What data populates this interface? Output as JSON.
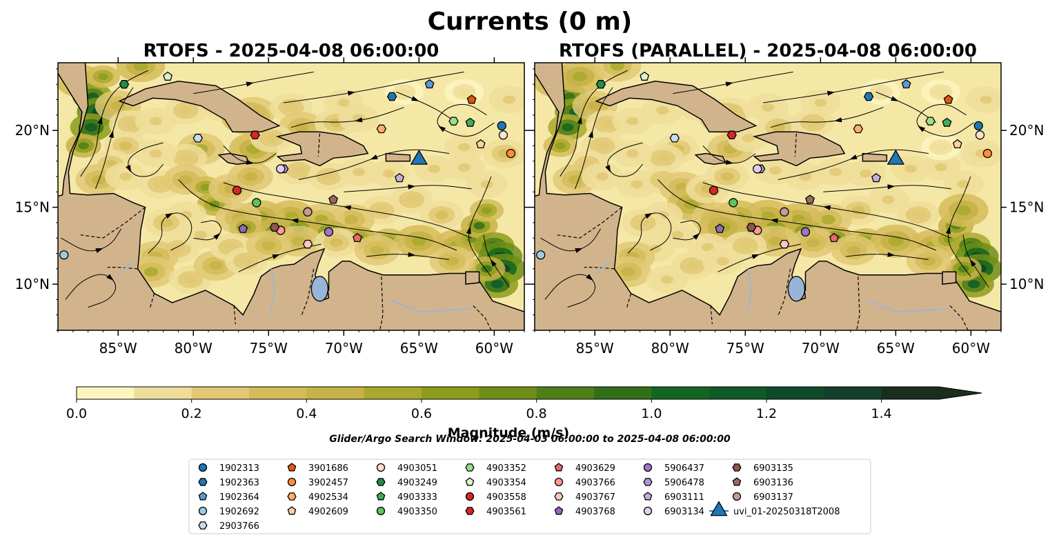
{
  "chart_data": {
    "type": "map-streamplot",
    "title": "Currents (0 m)",
    "panels": [
      {
        "title": "RTOFS - 2025-04-08 06:00:00",
        "variant": 0
      },
      {
        "title": "RTOFS (PARALLEL) - 2025-04-08 06:00:00",
        "variant": 1
      }
    ],
    "extent": {
      "lon": [
        -89,
        -58
      ],
      "lat": [
        7,
        24.4
      ]
    },
    "xticks": [
      {
        "lon": -85,
        "label": "85°W"
      },
      {
        "lon": -80,
        "label": "80°W"
      },
      {
        "lon": -75,
        "label": "75°W"
      },
      {
        "lon": -70,
        "label": "70°W"
      },
      {
        "lon": -65,
        "label": "65°W"
      },
      {
        "lon": -60,
        "label": "60°W"
      }
    ],
    "yticks": [
      {
        "lat": 10,
        "label": "10°N"
      },
      {
        "lat": 15,
        "label": "15°N"
      },
      {
        "lat": 20,
        "label": "20°N"
      }
    ],
    "colorbar": {
      "label": "Magnitude (m/s)",
      "min": 0,
      "max": 1.5,
      "step": 0.1,
      "extend": "max",
      "ticks": [
        {
          "v": 0,
          "label": "0.0"
        },
        {
          "v": 0.2,
          "label": "0.2"
        },
        {
          "v": 0.4,
          "label": "0.4"
        },
        {
          "v": 0.6,
          "label": "0.6"
        },
        {
          "v": 0.8,
          "label": "0.8"
        },
        {
          "v": 1.0,
          "label": "1.0"
        },
        {
          "v": 1.2,
          "label": "1.2"
        },
        {
          "v": 1.4,
          "label": "1.4"
        }
      ],
      "colors": [
        "#fbf5be",
        "#efde9a",
        "#e1c874",
        "#d4bc59",
        "#c6b246",
        "#a9a92e",
        "#8d9c1c",
        "#6f8e17",
        "#4f7e18",
        "#317019",
        "#12661f",
        "#0f5a28",
        "#0f4a2a",
        "#13402b",
        "#1a2e1c"
      ]
    },
    "search_window": "Glider/Argo Search Window: 2025-04-03 06:00:00 to 2025-04-08 06:00:00",
    "markers": [
      {
        "id": "1902313",
        "shape": "circle",
        "color": "#1f77b4",
        "lon": -59.5,
        "lat": 20.3
      },
      {
        "id": "1902363",
        "shape": "hexagon",
        "color": "#1f77b4",
        "lon": -66.8,
        "lat": 22.2
      },
      {
        "id": "1902364",
        "shape": "pentagon",
        "color": "#5b9bd5",
        "lon": -64.3,
        "lat": 23.0
      },
      {
        "id": "1902692",
        "shape": "circle",
        "color": "#9ecae1",
        "lon": -88.6,
        "lat": 11.9
      },
      {
        "id": "2903766",
        "shape": "hexagon",
        "color": "#c6dbef",
        "lon": -79.7,
        "lat": 19.5
      },
      {
        "id": "3901686",
        "shape": "pentagon",
        "color": "#e6550d",
        "lon": -61.5,
        "lat": 22.0
      },
      {
        "id": "3902457",
        "shape": "circle",
        "color": "#fd8d3c",
        "lon": -58.9,
        "lat": 18.5
      },
      {
        "id": "4902534",
        "shape": "hexagon",
        "color": "#fdae6b",
        "lon": -67.5,
        "lat": 20.1
      },
      {
        "id": "4902609",
        "shape": "pentagon",
        "color": "#fdd0a2",
        "lon": -60.9,
        "lat": 19.1
      },
      {
        "id": "4903051",
        "shape": "circle",
        "color": "#fde0c8",
        "lon": -59.4,
        "lat": 19.7
      },
      {
        "id": "4903249",
        "shape": "hexagon",
        "color": "#238b45",
        "lon": -84.6,
        "lat": 23.0
      },
      {
        "id": "4903333",
        "shape": "pentagon",
        "color": "#41ab5d",
        "lon": -61.6,
        "lat": 20.5
      },
      {
        "id": "4903350",
        "shape": "circle",
        "color": "#5ec25e",
        "lon": -75.8,
        "lat": 15.3
      },
      {
        "id": "4903352",
        "shape": "hexagon",
        "color": "#98df8a",
        "lon": -62.7,
        "lat": 20.6
      },
      {
        "id": "4903354",
        "shape": "pentagon",
        "color": "#d9f5c9",
        "lon": -81.7,
        "lat": 23.5
      },
      {
        "id": "4903558",
        "shape": "circle",
        "color": "#d62728",
        "lon": -77.1,
        "lat": 16.1
      },
      {
        "id": "4903561",
        "shape": "hexagon",
        "color": "#d62728",
        "lon": -75.9,
        "lat": 19.7
      },
      {
        "id": "4903629",
        "shape": "pentagon",
        "color": "#e8676b",
        "lon": -69.1,
        "lat": 13.0
      },
      {
        "id": "4903766",
        "shape": "circle",
        "color": "#ff9896",
        "lon": -74.2,
        "lat": 13.5
      },
      {
        "id": "4903767",
        "shape": "hexagon",
        "color": "#ffc6c4",
        "lon": -72.4,
        "lat": 12.6
      },
      {
        "id": "4903768",
        "shape": "pentagon",
        "color": "#9467bd",
        "lon": -76.7,
        "lat": 13.6
      },
      {
        "id": "5906437",
        "shape": "circle",
        "color": "#9f74c9",
        "lon": -71.0,
        "lat": 13.4
      },
      {
        "id": "5906478",
        "shape": "hexagon",
        "color": "#b393d6",
        "lon": -74.0,
        "lat": 17.5
      },
      {
        "id": "6903111",
        "shape": "pentagon",
        "color": "#c5b0d5",
        "lon": -66.3,
        "lat": 16.9
      },
      {
        "id": "6903134",
        "shape": "circle",
        "color": "#e2ccf0",
        "lon": -74.2,
        "lat": 17.5
      },
      {
        "id": "6903135",
        "shape": "hexagon",
        "color": "#8c564b",
        "lon": -74.6,
        "lat": 13.7
      },
      {
        "id": "6903136",
        "shape": "pentagon",
        "color": "#9c6a5d",
        "lon": -70.7,
        "lat": 15.5
      },
      {
        "id": "6903137",
        "shape": "circle",
        "color": "#c49c94",
        "lon": -72.4,
        "lat": 14.7
      },
      {
        "id": "uvi_01-20250318T2008",
        "shape": "triangle",
        "color": "#1f77b4",
        "lon": -65.0,
        "lat": 18.1
      }
    ]
  }
}
